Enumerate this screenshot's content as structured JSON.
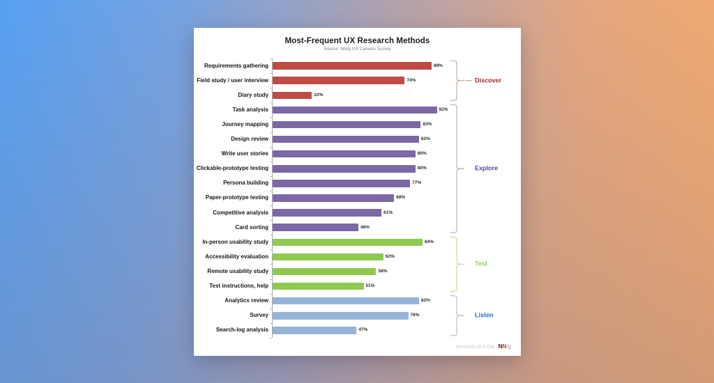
{
  "page": {
    "background_colors": {
      "top_left_blue": "#57a1f3",
      "top_right_orange": "#f4aa6e",
      "bottom_mute_overlay": "#7d7387"
    },
    "card_color": "#ffffff"
  },
  "chart_data": {
    "type": "bar",
    "orientation": "horizontal",
    "title": "Most-Frequent UX Research Methods",
    "subtitle": "Source: NN/g UX Careers Survey",
    "xlabel": "",
    "ylabel": "",
    "xlim": [
      0,
      100
    ],
    "value_format": "percent",
    "grid": false,
    "legend_position": "right-braces",
    "groups": [
      {
        "name": "Discover",
        "bar_color": "#bf4b45",
        "label_color": "#a1292d",
        "brace_color": "#c7b3a6",
        "items": [
          {
            "label": "Requirements gathering",
            "value": 89
          },
          {
            "label": "Field study / user interview",
            "value": 74
          },
          {
            "label": "Diary study",
            "value": 22
          }
        ]
      },
      {
        "name": "Explore",
        "bar_color": "#7c68a4",
        "label_color": "#5a48a0",
        "brace_color": "#bcb8c6",
        "items": [
          {
            "label": "Task analysis",
            "value": 92
          },
          {
            "label": "Journey mapping",
            "value": 83
          },
          {
            "label": "Design review",
            "value": 82
          },
          {
            "label": "Write user stories",
            "value": 80
          },
          {
            "label": "Clickable-prototype testing",
            "value": 80
          },
          {
            "label": "Persona building",
            "value": 77
          },
          {
            "label": "Paper-prototype testing",
            "value": 68
          },
          {
            "label": "Competitive analysis",
            "value": 61
          },
          {
            "label": "Card sorting",
            "value": 48
          }
        ]
      },
      {
        "name": "Test",
        "bar_color": "#8fc94f",
        "label_color": "#93ce52",
        "brace_color": "#cadfa6",
        "items": [
          {
            "label": "In-person usability study",
            "value": 84
          },
          {
            "label": "Accessibility evaluation",
            "value": 62
          },
          {
            "label": "Remote usability study",
            "value": 58
          },
          {
            "label": "Test instructions, help",
            "value": 51
          }
        ]
      },
      {
        "name": "Listen",
        "bar_color": "#95b4d8",
        "label_color": "#2e6dbe",
        "brace_color": "#b7c6da",
        "items": [
          {
            "label": "Analytics review",
            "value": 82
          },
          {
            "label": "Survey",
            "value": 76
          },
          {
            "label": "Search-log analysis",
            "value": 47
          }
        ]
      }
    ]
  },
  "footer": {
    "site": "NNGROUP.COM",
    "logo_n1": "N",
    "logo_n2": "N",
    "logo_suffix": "/g"
  }
}
